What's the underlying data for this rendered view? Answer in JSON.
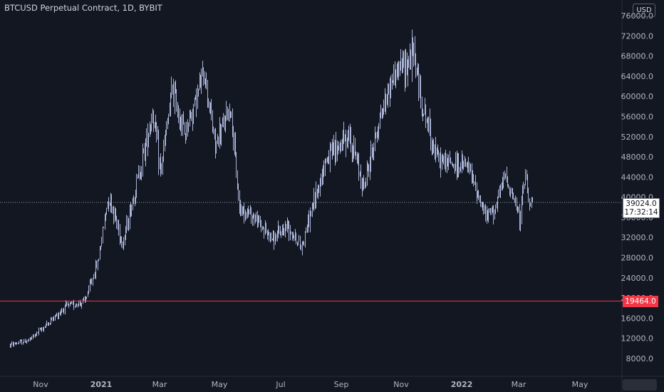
{
  "header": {
    "title": "BTCUSD Perpetual Contract, 1D, BYBIT",
    "unit": "USD"
  },
  "price_axis": {
    "labels": [
      "76000.0",
      "72000.0",
      "68000.0",
      "64000.0",
      "60000.0",
      "56000.0",
      "52000.0",
      "48000.0",
      "44000.0",
      "40000.0",
      "36000.0",
      "32000.0",
      "28000.0",
      "24000.0",
      "20000.0",
      "16000.0",
      "12000.0",
      "8000.0"
    ],
    "current_price": "39024.0",
    "countdown": "17:32:14",
    "horizontal_line_price": "19464.0"
  },
  "time_axis": {
    "labels": [
      {
        "text": "Nov",
        "bold": false
      },
      {
        "text": "2021",
        "bold": true
      },
      {
        "text": "Mar",
        "bold": false
      },
      {
        "text": "May",
        "bold": false
      },
      {
        "text": "Jul",
        "bold": false
      },
      {
        "text": "Sep",
        "bold": false
      },
      {
        "text": "Nov",
        "bold": false
      },
      {
        "text": "2022",
        "bold": true
      },
      {
        "text": "Mar",
        "bold": false
      },
      {
        "text": "May",
        "bold": false
      }
    ]
  },
  "colors": {
    "background": "#131722",
    "candle": "#aab4d6",
    "horizontal_line": "#f23645",
    "text": "#b2b5be"
  },
  "chart_data": {
    "type": "line",
    "title": "BTCUSD Perpetual Contract, 1D, BYBIT",
    "ylabel": "USD",
    "ylim": [
      6000,
      78000
    ],
    "x": [
      "2020-10-01",
      "2020-10-20",
      "2020-11-10",
      "2020-11-25",
      "2020-12-15",
      "2020-12-28",
      "2021-01-08",
      "2021-01-22",
      "2021-02-10",
      "2021-02-21",
      "2021-03-01",
      "2021-03-13",
      "2021-03-25",
      "2021-04-14",
      "2021-04-25",
      "2021-05-10",
      "2021-05-19",
      "2021-06-01",
      "2021-06-22",
      "2021-07-07",
      "2021-07-20",
      "2021-08-14",
      "2021-08-22",
      "2021-09-06",
      "2021-09-21",
      "2021-10-06",
      "2021-10-20",
      "2021-11-10",
      "2021-11-18",
      "2021-12-04",
      "2021-12-20",
      "2022-01-03",
      "2022-01-22",
      "2022-02-01",
      "2022-02-10",
      "2022-02-24",
      "2022-03-02",
      "2022-03-07",
      "2022-03-09"
    ],
    "series": [
      {
        "values": [
          10700,
          11600,
          15300,
          18200,
          19300,
          27000,
          40500,
          30800,
          47000,
          57000,
          45000,
          61500,
          52500,
          64800,
          50000,
          58000,
          38000,
          36500,
          31500,
          34500,
          30000,
          47500,
          49000,
          52500,
          42000,
          55000,
          64000,
          68500,
          58500,
          47500,
          46500,
          46000,
          36000,
          38500,
          44500,
          36000,
          44500,
          38500,
          39024
        ]
      }
    ],
    "horizontal_line": 19464
  }
}
